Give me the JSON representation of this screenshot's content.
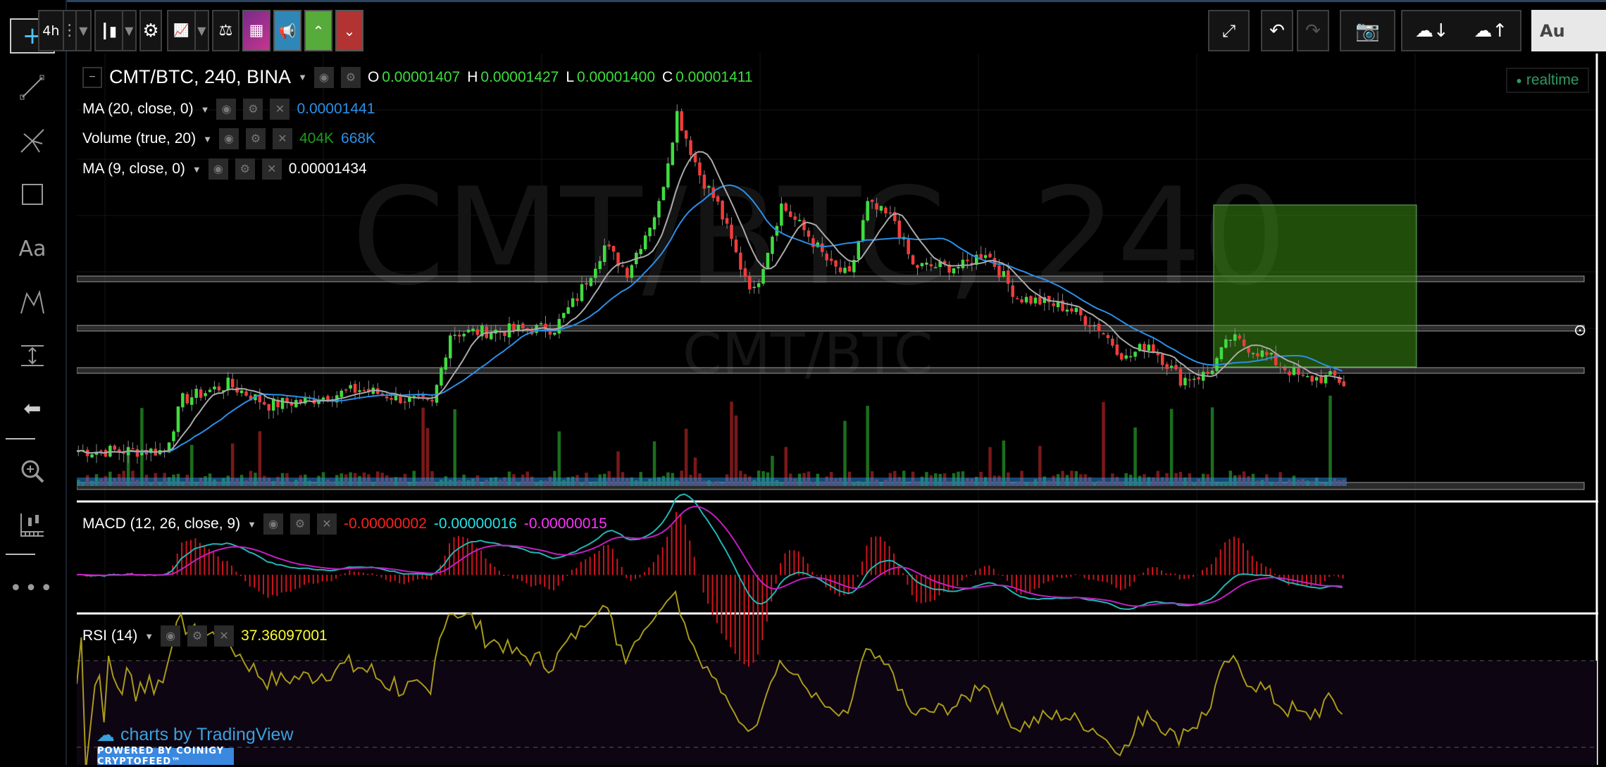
{
  "toolbar": {
    "interval": "4h",
    "auto_label": "Au",
    "colors": {
      "purple": "#a8328f",
      "blue": "#2f87b8",
      "green": "#57ab3b",
      "red": "#b33232",
      "camera": "#4bc08a"
    }
  },
  "left_tools": [
    {
      "icon": "crosshair-icon"
    },
    {
      "icon": "trend-line-icon"
    },
    {
      "icon": "pitchfork-icon"
    },
    {
      "icon": "rectangle-icon"
    },
    {
      "icon": "text-icon",
      "label": "Aa"
    },
    {
      "icon": "pattern-icon"
    },
    {
      "icon": "measure-icon"
    },
    {
      "icon": "back-arrow-icon"
    },
    {
      "icon": "zoom-in-icon"
    },
    {
      "icon": "indicator-ruler-icon"
    },
    {
      "icon": "more-icon",
      "label": "•••"
    }
  ],
  "legend": {
    "symbol": "CMT/BTC, 240, BINA",
    "o_label": "O",
    "o": "0.00001407",
    "h_label": "H",
    "h": "0.00001427",
    "l_label": "L",
    "l": "0.00001400",
    "c_label": "C",
    "c": "0.00001411",
    "ma20_label": "MA (20, close, 0)",
    "ma20_value": "0.00001441",
    "volume_label": "Volume (true, 20)",
    "volume_value": "404K",
    "volume_ma": "668K",
    "ma9_label": "MA (9, close, 0)",
    "ma9_value": "0.00001434",
    "macd_label": "MACD (12, 26, close, 9)",
    "macd_hist": "-0.00000002",
    "macd_line": "-0.00000016",
    "macd_signal": "-0.00000015",
    "rsi_label": "RSI (14)",
    "rsi_value": "37.36097001"
  },
  "realtime": "realtime",
  "watermark": {
    "big": "CMT/BTC, 240",
    "small": "CMT/BTC"
  },
  "branding": {
    "tradingview": "charts by TradingView",
    "coinigy": "POWERED BY COINIGY CRYPTOFEED™"
  },
  "chart_data": {
    "type": "candlestick",
    "units": "satoshi (1e-8 BTC), approximate",
    "candles": 280,
    "price_anchors": [
      [
        0,
        1225
      ],
      [
        19,
        1225
      ],
      [
        23,
        1375
      ],
      [
        33,
        1420
      ],
      [
        42,
        1360
      ],
      [
        51,
        1375
      ],
      [
        62,
        1405
      ],
      [
        78,
        1360
      ],
      [
        82,
        1570
      ],
      [
        105,
        1585
      ],
      [
        110,
        1675
      ],
      [
        116,
        1825
      ],
      [
        121,
        1750
      ],
      [
        128,
        1945
      ],
      [
        132,
        2215
      ],
      [
        137,
        2035
      ],
      [
        141,
        1945
      ],
      [
        146,
        1765
      ],
      [
        149,
        1690
      ],
      [
        155,
        1945
      ],
      [
        161,
        1855
      ],
      [
        166,
        1765
      ],
      [
        170,
        1735
      ],
      [
        174,
        1945
      ],
      [
        180,
        1900
      ],
      [
        184,
        1765
      ],
      [
        195,
        1765
      ],
      [
        200,
        1810
      ],
      [
        207,
        1675
      ],
      [
        218,
        1645
      ],
      [
        225,
        1585
      ],
      [
        231,
        1495
      ],
      [
        236,
        1540
      ],
      [
        243,
        1435
      ],
      [
        249,
        1450
      ],
      [
        254,
        1555
      ],
      [
        261,
        1510
      ],
      [
        270,
        1435
      ],
      [
        277,
        1441
      ],
      [
        280,
        1411
      ]
    ],
    "colors": {
      "up": "#3fdc3f",
      "down": "#f23b3b",
      "ma20": "#2b8fe8",
      "ma9": "#aaaaaa",
      "macd": "#21b5b5",
      "signal": "#c31fc3",
      "rsi": "#a89a1a"
    }
  }
}
